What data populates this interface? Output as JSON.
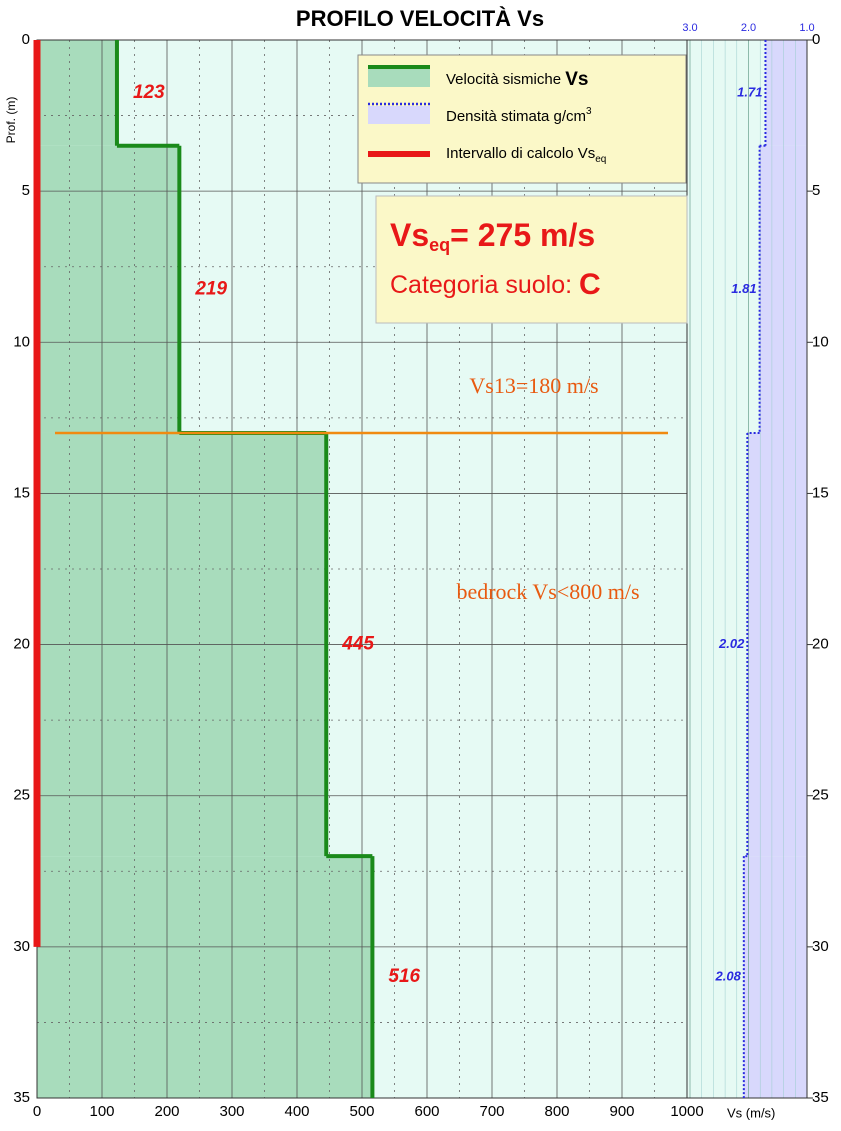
{
  "chart_data": {
    "type": "step-profile",
    "title": "PROFILO VELOCITÀ Vs",
    "y_label": "Prof. (m)",
    "x_label": "Vs (m/s)",
    "xlim": [
      0,
      1000
    ],
    "xticks": [
      0,
      100,
      200,
      300,
      400,
      500,
      600,
      700,
      800,
      900,
      1000
    ],
    "ylim": [
      0,
      35
    ],
    "yticks": [
      0,
      5,
      10,
      15,
      20,
      25,
      30,
      35
    ],
    "density_lim": [
      3,
      1
    ],
    "density_ticks": [
      {
        "value": 3,
        "label": "3.0"
      },
      {
        "value": 2,
        "label": "2.0"
      },
      {
        "value": 1,
        "label": "1.0"
      }
    ],
    "layers": [
      {
        "top": 0,
        "bottom": 3.5,
        "vs": 123,
        "density": 1.71
      },
      {
        "top": 3.5,
        "bottom": 13,
        "vs": 219,
        "density": 1.81
      },
      {
        "top": 13,
        "bottom": 27,
        "vs": 445,
        "density": 2.02
      },
      {
        "top": 27,
        "bottom": 35,
        "vs": 516,
        "density": 2.08
      }
    ],
    "interval": [
      0,
      30
    ],
    "vs13_depth": 13,
    "legend": {
      "vs": {
        "text": "Velocità sismiche ",
        "bold": "Vs",
        "color": "#1a8a1a"
      },
      "density": {
        "text": "Densità stimata g/cm",
        "sup": "3",
        "color": "#2a2ae0"
      },
      "interval": {
        "text": "Intervallo di calcolo Vs",
        "sub": "eq",
        "color": "#e81818"
      }
    },
    "result": {
      "vs": "Vs",
      "sub": "eq",
      "value": "= 275 m/s",
      "category_text": "Categoria suolo: ",
      "category": "C"
    },
    "annotations": [
      "Vs13=180 m/s",
      "bedrock Vs<800 m/s"
    ]
  }
}
